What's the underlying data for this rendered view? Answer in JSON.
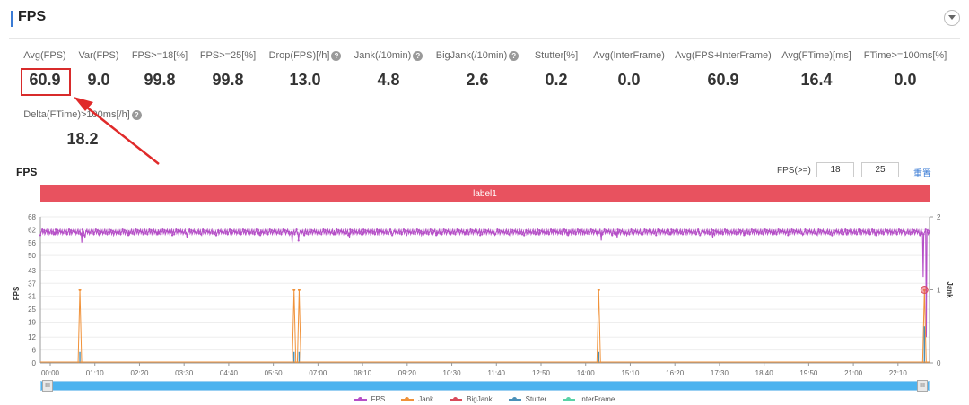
{
  "header": {
    "title": "FPS"
  },
  "metrics": [
    {
      "label": "Avg(FPS)",
      "value": "60.9",
      "help": false
    },
    {
      "label": "Var(FPS)",
      "value": "9.0",
      "help": false
    },
    {
      "label": "FPS>=18[%]",
      "value": "99.8",
      "help": false
    },
    {
      "label": "FPS>=25[%]",
      "value": "99.8",
      "help": false
    },
    {
      "label": "Drop(FPS)[/h]",
      "value": "13.0",
      "help": true
    },
    {
      "label": "Jank(/10min)",
      "value": "4.8",
      "help": true
    },
    {
      "label": "BigJank(/10min)",
      "value": "2.6",
      "help": true
    },
    {
      "label": "Stutter[%]",
      "value": "0.2",
      "help": false
    },
    {
      "label": "Avg(InterFrame)",
      "value": "0.0",
      "help": false
    },
    {
      "label": "Avg(FPS+InterFrame)",
      "value": "60.9",
      "help": false
    },
    {
      "label": "Avg(FTime)[ms]",
      "value": "16.4",
      "help": false
    },
    {
      "label": "FTime>=100ms[%]",
      "value": "0.0",
      "help": false
    },
    {
      "label": "Delta(FTime)>100ms[/h]",
      "value": "18.2",
      "help": true
    }
  ],
  "chart_section": {
    "title": "FPS",
    "filter_label": "FPS(>=)",
    "threshold_low": "18",
    "threshold_high": "25",
    "reset_label": "重置",
    "band_label": "label1"
  },
  "chart_data": {
    "type": "line",
    "y_left_label": "FPS",
    "y_right_label": "Jank",
    "y_left_ticks": [
      0,
      6,
      12,
      19,
      25,
      31,
      37,
      43,
      50,
      56,
      62,
      68
    ],
    "y_left_range": [
      0,
      68
    ],
    "y_right_ticks": [
      0,
      1,
      2
    ],
    "y_right_range": [
      0,
      2
    ],
    "x_ticks": [
      "00:00",
      "01:10",
      "02:20",
      "03:30",
      "04:40",
      "05:50",
      "07:00",
      "08:10",
      "09:20",
      "10:30",
      "11:40",
      "12:50",
      "14:00",
      "15:10",
      "16:20",
      "17:30",
      "18:40",
      "19:50",
      "21:00",
      "22:10"
    ],
    "x_range_seconds": [
      0,
      1395
    ],
    "fps_baseline": 61,
    "fps_dips": [
      {
        "t": 65,
        "fps": 56
      },
      {
        "t": 70,
        "fps": 58
      },
      {
        "t": 230,
        "fps": 58
      },
      {
        "t": 395,
        "fps": 56
      },
      {
        "t": 405,
        "fps": 57
      },
      {
        "t": 485,
        "fps": 58
      },
      {
        "t": 880,
        "fps": 57
      },
      {
        "t": 905,
        "fps": 58
      },
      {
        "t": 1055,
        "fps": 58
      },
      {
        "t": 1385,
        "fps": 40
      },
      {
        "t": 1390,
        "fps": 12
      }
    ],
    "jank_events": [
      {
        "t": 62,
        "jank": 1,
        "stutter": 0.15
      },
      {
        "t": 398,
        "jank": 1,
        "stutter": 0.15
      },
      {
        "t": 406,
        "jank": 1,
        "stutter": 0.15
      },
      {
        "t": 876,
        "jank": 1,
        "stutter": 0.15
      },
      {
        "t": 1387,
        "jank": 1,
        "stutter": 0.5
      }
    ],
    "legend": [
      {
        "name": "FPS",
        "color": "#b54fc7"
      },
      {
        "name": "Jank",
        "color": "#f0923a"
      },
      {
        "name": "BigJank",
        "color": "#d84a5a"
      },
      {
        "name": "Stutter",
        "color": "#4a90b8"
      },
      {
        "name": "InterFrame",
        "color": "#5ad2a6"
      }
    ]
  },
  "colors": {
    "accent": "#3a7bd5",
    "band": "#e8525f",
    "highlight": "#d82b2b"
  }
}
